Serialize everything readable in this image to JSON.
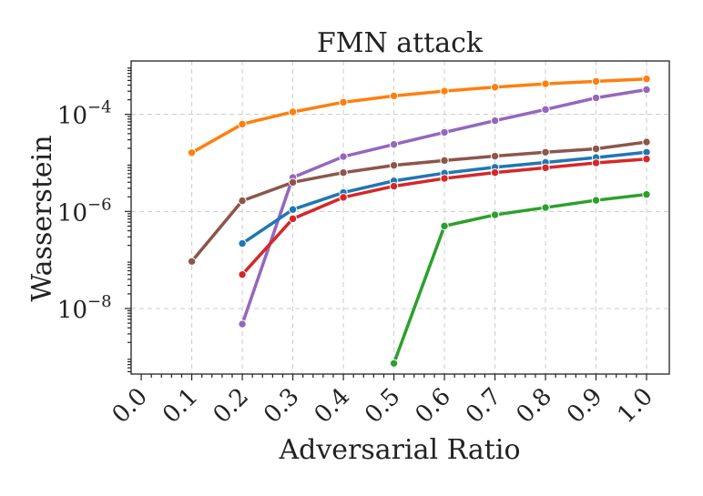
{
  "chart_data": {
    "type": "line",
    "title": "FMN attack",
    "xlabel": "Adversarial Ratio",
    "ylabel": "Wasserstein",
    "y_scale": "log",
    "xlim": [
      -0.02,
      1.045
    ],
    "ylim_log10": [
      -9.35,
      -2.9
    ],
    "grid": true,
    "x_ticks": [
      "0.0",
      "0.1",
      "0.2",
      "0.3",
      "0.4",
      "0.5",
      "0.6",
      "0.7",
      "0.8",
      "0.9",
      "1.0"
    ],
    "y_ticks": [
      {
        "value": -4,
        "label": "10",
        "exp": "−4"
      },
      {
        "value": -6,
        "label": "10",
        "exp": "−6"
      },
      {
        "value": -8,
        "label": "10",
        "exp": "−8"
      }
    ],
    "series": [
      {
        "color": "#ff7f0e",
        "x": [
          0.1,
          0.2,
          0.3,
          0.4,
          0.5,
          0.6,
          0.7,
          0.8,
          0.9,
          1.0
        ],
        "y": [
          -4.79,
          -4.2,
          -3.95,
          -3.75,
          -3.62,
          -3.52,
          -3.44,
          -3.37,
          -3.32,
          -3.27
        ]
      },
      {
        "color": "#9467bd",
        "x": [
          0.2,
          0.3,
          0.4,
          0.5,
          0.6,
          0.7,
          0.8,
          0.9,
          1.0
        ],
        "y": [
          -8.32,
          -5.3,
          -4.87,
          -4.62,
          -4.37,
          -4.13,
          -3.9,
          -3.66,
          -3.49
        ]
      },
      {
        "color": "#8c564b",
        "x": [
          0.1,
          0.2,
          0.3,
          0.4,
          0.5,
          0.6,
          0.7,
          0.8,
          0.9,
          1.0
        ],
        "y": [
          -7.03,
          -5.78,
          -5.4,
          -5.2,
          -5.05,
          -4.95,
          -4.86,
          -4.78,
          -4.71,
          -4.57
        ]
      },
      {
        "color": "#1f77b4",
        "x": [
          0.2,
          0.3,
          0.4,
          0.5,
          0.6,
          0.7,
          0.8,
          0.9,
          1.0
        ],
        "y": [
          -6.66,
          -5.96,
          -5.61,
          -5.37,
          -5.21,
          -5.09,
          -4.99,
          -4.89,
          -4.78
        ]
      },
      {
        "color": "#d62728",
        "x": [
          0.2,
          0.3,
          0.4,
          0.5,
          0.6,
          0.7,
          0.8,
          0.9,
          1.0
        ],
        "y": [
          -7.3,
          -6.15,
          -5.71,
          -5.48,
          -5.32,
          -5.2,
          -5.1,
          -5.0,
          -4.92
        ]
      },
      {
        "color": "#2ca02c",
        "x": [
          0.5,
          0.6,
          0.7,
          0.8,
          0.9,
          1.0
        ],
        "y": [
          -9.13,
          -6.3,
          -6.07,
          -5.92,
          -5.77,
          -5.65
        ]
      }
    ]
  }
}
